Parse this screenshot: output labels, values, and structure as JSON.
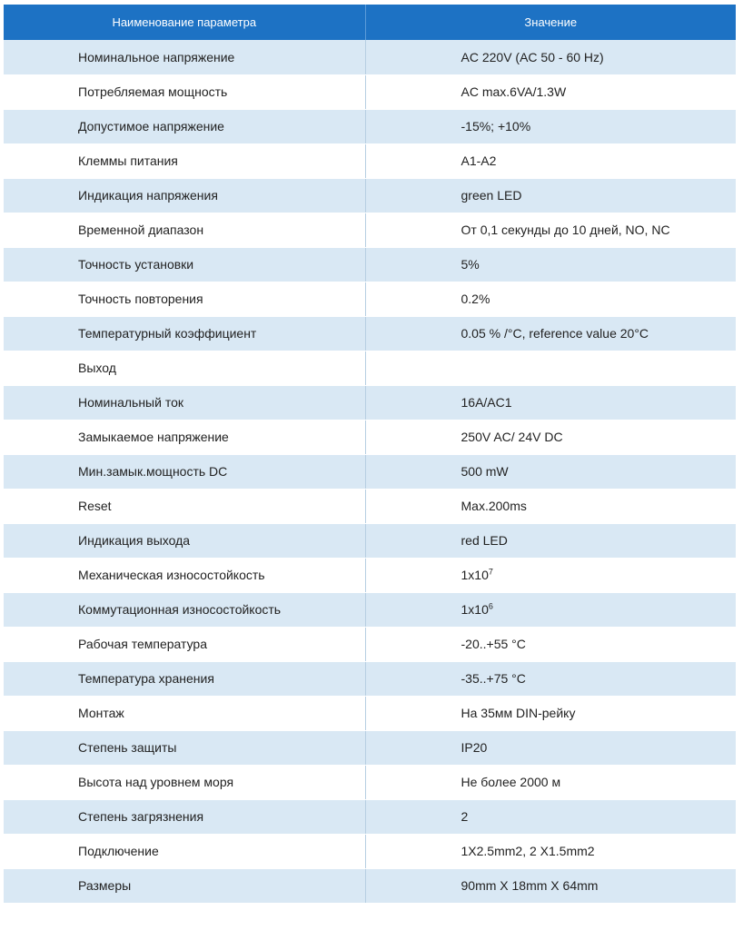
{
  "header": {
    "param_label": "Наименование параметра",
    "value_label": "Значение"
  },
  "rows": [
    {
      "param": "Номинальное напряжение",
      "value": "AC 220V (AC 50 - 60 Hz)"
    },
    {
      "param": "Потребляемая мощность",
      "value": "AC max.6VA/1.3W"
    },
    {
      "param": "Допустимое напряжение",
      "value": "-15%; +10%"
    },
    {
      "param": "Клеммы питания",
      "value": "A1-A2"
    },
    {
      "param": "Индикация напряжения",
      "value": "green LED"
    },
    {
      "param": "Временной диапазон",
      "value": "От 0,1 секунды до 10 дней, NO, NC"
    },
    {
      "param": "Точность установки",
      "value": "5%"
    },
    {
      "param": "Точность повторения",
      "value": "0.2%"
    },
    {
      "param": "Температурный коэффициент",
      "value": "0.05 % /°C, reference value 20°C"
    },
    {
      "param": "Выход",
      "value": ""
    },
    {
      "param": "Номинальный ток",
      "value": "16A/AC1"
    },
    {
      "param": "Замыкаемое напряжение",
      "value": "250V AC/ 24V DC"
    },
    {
      "param": "Мин.замык.мощность DC",
      "value": "500 mW"
    },
    {
      "param": "Reset",
      "value": "Max.200ms"
    },
    {
      "param": "Индикация выхода",
      "value": "red LED"
    },
    {
      "param": "Механическая износостойкость",
      "value": "1x10",
      "sup": "7"
    },
    {
      "param": "Коммутационная износостойкость",
      "value": "1x10",
      "sup": "6"
    },
    {
      "param": "Рабочая температура",
      "value": "-20..+55 °C"
    },
    {
      "param": "Температура хранения",
      "value": "-35..+75 °C"
    },
    {
      "param": "Монтаж",
      "value": "На 35мм DIN-рейку"
    },
    {
      "param": "Степень защиты",
      "value": "IP20"
    },
    {
      "param": "Высота над уровнем моря",
      "value": "Не более 2000 м"
    },
    {
      "param": "Степень загрязнения",
      "value": "2"
    },
    {
      "param": "Подключение",
      "value": "1X2.5mm2, 2 X1.5mm2"
    },
    {
      "param": "Размеры",
      "value": "90mm X 18mm X 64mm"
    }
  ]
}
